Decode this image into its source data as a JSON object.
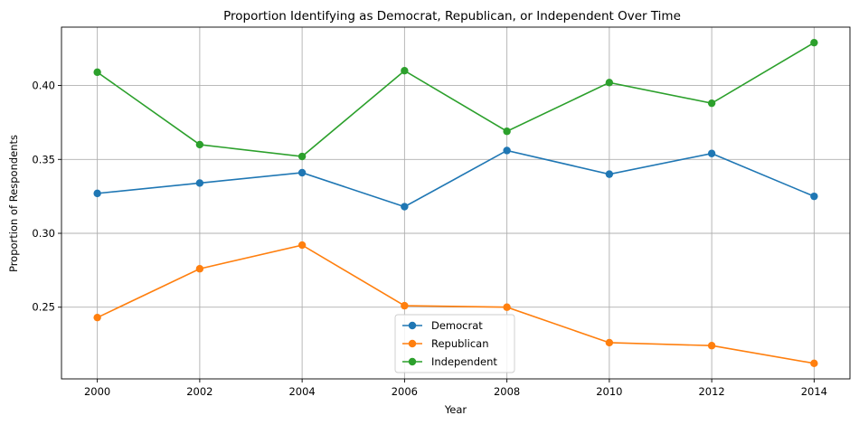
{
  "chart_data": {
    "type": "line",
    "title": "Proportion Identifying as Democrat, Republican, or Independent Over Time",
    "xlabel": "Year",
    "ylabel": "Proportion of Respondents",
    "x": [
      2000,
      2002,
      2004,
      2006,
      2008,
      2010,
      2012,
      2014
    ],
    "x_ticks": [
      "2000",
      "2002",
      "2004",
      "2006",
      "2008",
      "2010",
      "2012",
      "2014"
    ],
    "y_ticks": [
      "0.25",
      "0.30",
      "0.35",
      "0.40"
    ],
    "y_tick_values": [
      0.25,
      0.3,
      0.35,
      0.4
    ],
    "xlim": [
      1999.3,
      2014.7
    ],
    "ylim": [
      0.2015,
      0.4395
    ],
    "grid": true,
    "legend_position": "lower-center",
    "series": [
      {
        "name": "Democrat",
        "color": "#1f77b4",
        "values": [
          0.327,
          0.334,
          0.341,
          0.318,
          0.356,
          0.34,
          0.354,
          0.325
        ]
      },
      {
        "name": "Republican",
        "color": "#ff7f0e",
        "values": [
          0.243,
          0.276,
          0.292,
          0.251,
          0.25,
          0.226,
          0.224,
          0.212
        ]
      },
      {
        "name": "Independent",
        "color": "#2ca02c",
        "values": [
          0.409,
          0.36,
          0.352,
          0.41,
          0.369,
          0.402,
          0.388,
          0.429
        ]
      }
    ]
  }
}
